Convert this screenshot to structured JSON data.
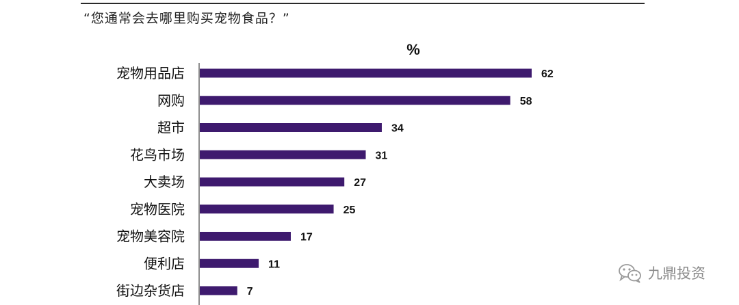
{
  "header": {
    "question": "“您通常会去哪里购买宠物食品？”"
  },
  "watermark": {
    "text": "九鼎投资",
    "icon": "wechat-icon"
  },
  "colors": {
    "bar": "#3e1a6e",
    "axis": "#444444"
  },
  "chart_data": {
    "type": "bar",
    "orientation": "horizontal",
    "unit_label": "%",
    "categories": [
      "宠物用品店",
      "网购",
      "超市",
      "花鸟市场",
      "大卖场",
      "宠物医院",
      "宠物美容院",
      "便利店",
      "街边杂货店"
    ],
    "values": [
      62,
      58,
      34,
      31,
      27,
      25,
      17,
      11,
      7
    ],
    "xlim": [
      0,
      70
    ],
    "grid": false,
    "legend": "none",
    "data_labels": true
  }
}
